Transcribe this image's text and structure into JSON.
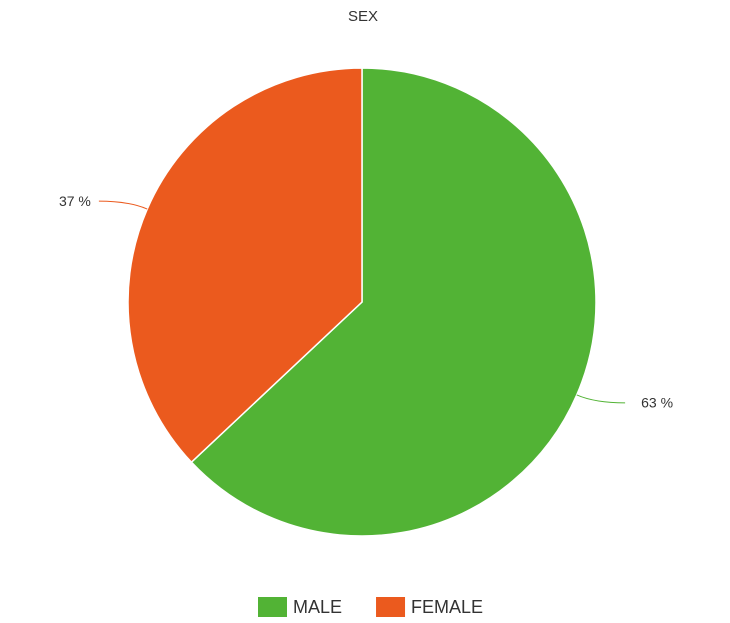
{
  "chart_data": {
    "type": "pie",
    "title": "SEX",
    "categories": [
      "MALE",
      "FEMALE"
    ],
    "values": [
      63,
      37
    ],
    "value_labels": [
      "63 %",
      "37 %"
    ],
    "colors": [
      "#52b335",
      "#eb5a1e"
    ],
    "legend": "bottom"
  }
}
